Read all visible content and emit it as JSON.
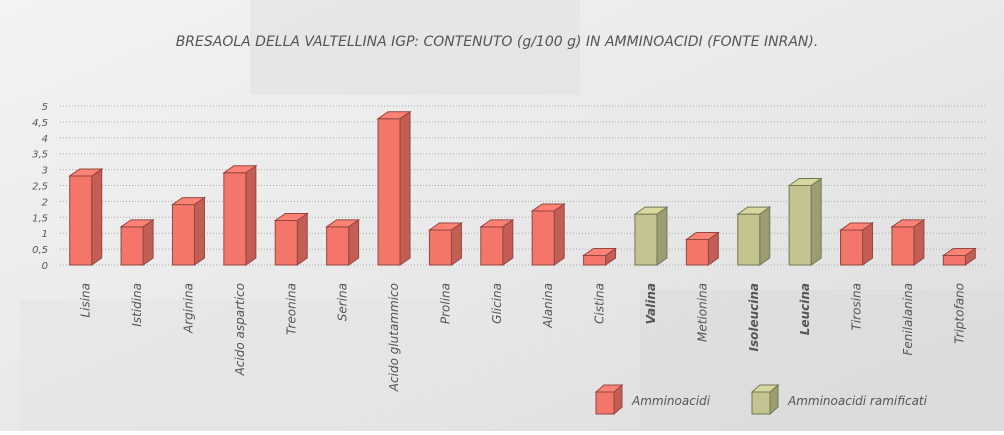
{
  "chart_data": {
    "type": "bar3d",
    "title": "BRESAOLA DELLA VALTELLINA IGP: CONTENUTO (g/100 g) IN AMMINOACIDI (FONTE INRAN).",
    "categories": [
      "Lisina",
      "Istidina",
      "Arginina",
      "Acido aspartico",
      "Treonina",
      "Serina",
      "Acido glutammico",
      "Prolina",
      "Glicina",
      "Alanina",
      "Cistina",
      "Valina",
      "Metionina",
      "Isoleucina",
      "Leucina",
      "Tirosina",
      "Fenilalanina",
      "Triptofano"
    ],
    "series": [
      {
        "name": "Amminoacidi",
        "color": "#f4766a",
        "values": [
          2.8,
          1.2,
          1.9,
          2.9,
          1.4,
          1.2,
          4.6,
          1.1,
          1.2,
          1.7,
          0.3,
          null,
          0.8,
          null,
          null,
          1.1,
          1.2,
          0.3
        ]
      },
      {
        "name": "Amminoacidi ramificati",
        "color": "#c3c48f",
        "values": [
          null,
          null,
          null,
          null,
          null,
          null,
          null,
          null,
          null,
          null,
          null,
          1.6,
          null,
          1.6,
          2.5,
          null,
          null,
          null
        ]
      }
    ],
    "ylim": [
      0,
      5
    ],
    "yticks": [
      0,
      {
        "value": 0.5,
        "label": "0,5"
      },
      1,
      {
        "value": 1.5,
        "label": "1,5"
      },
      2,
      {
        "value": 2.5,
        "label": "2,5"
      },
      3,
      {
        "value": 3.5,
        "label": "3,5"
      },
      4,
      {
        "value": 4.5,
        "label": "4,5"
      },
      5
    ],
    "grid": true
  }
}
